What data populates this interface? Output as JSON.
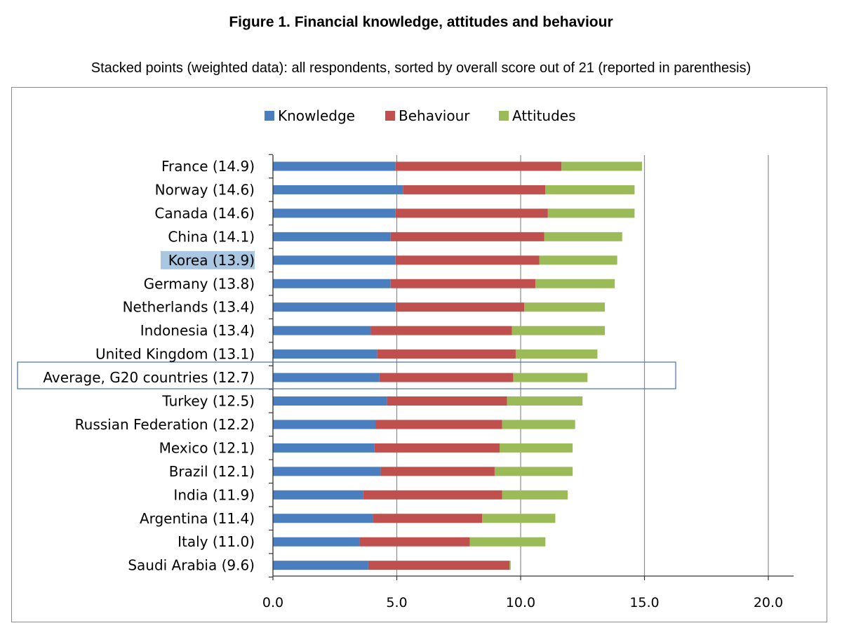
{
  "figure": {
    "title": "Figure 1.  Financial knowledge, attitudes and behaviour",
    "subtitle": "Stacked points (weighted data): all respondents, sorted by overall score out of 21 (reported in parenthesis)"
  },
  "chart_data": {
    "type": "bar",
    "orientation": "horizontal",
    "stacked": true,
    "title": "Figure 1.  Financial knowledge, attitudes and behaviour",
    "subtitle": "Stacked points (weighted data): all respondents, sorted by overall score out of 21 (reported in parenthesis)",
    "xlabel": "",
    "ylabel": "",
    "xlim": [
      0,
      21
    ],
    "xticks": [
      0,
      5,
      10,
      15,
      20
    ],
    "xtick_labels": [
      "0.0",
      "5.0",
      "10.0",
      "15.0",
      "20.0"
    ],
    "grid": "vertical major gridlines",
    "legend_position": "top-center",
    "categories": [
      "France (14.9)",
      "Norway (14.6)",
      "Canada (14.6)",
      "China (14.1)",
      "Korea (13.9)",
      "Germany (13.8)",
      "Netherlands (13.4)",
      "Indonesia (13.4)",
      "United Kingdom (13.1)",
      "Average, G20 countries (12.7)",
      "Turkey (12.5)",
      "Russian Federation (12.2)",
      "Mexico (12.1)",
      "Brazil (12.1)",
      "India (11.9)",
      "Argentina (11.4)",
      "Italy (11.0)",
      "Saudi Arabia (9.6)"
    ],
    "highlight": "Korea (13.9)",
    "highlight_color": "#a9c7e0",
    "boxed": "Average, G20 countries (12.7)",
    "box_color": "#4a6fa5",
    "series": [
      {
        "name": "Knowledge",
        "color": "#4a7ebf",
        "values": [
          4.95,
          5.25,
          4.95,
          4.75,
          4.95,
          4.75,
          4.95,
          3.95,
          4.2,
          4.3,
          4.6,
          4.15,
          4.1,
          4.35,
          3.65,
          4.05,
          3.5,
          3.85
        ]
      },
      {
        "name": "Behaviour",
        "color": "#c0504d",
        "values": [
          6.7,
          5.75,
          6.15,
          6.2,
          5.8,
          5.85,
          5.2,
          5.7,
          5.6,
          5.4,
          4.85,
          5.1,
          5.05,
          4.6,
          5.6,
          4.4,
          4.45,
          5.7
        ]
      },
      {
        "name": "Attitudes",
        "color": "#9bbb59",
        "values": [
          3.25,
          3.6,
          3.5,
          3.15,
          3.15,
          3.2,
          3.25,
          3.75,
          3.3,
          3.0,
          3.05,
          2.95,
          2.95,
          3.15,
          2.65,
          2.95,
          3.05,
          0.05
        ]
      }
    ]
  }
}
